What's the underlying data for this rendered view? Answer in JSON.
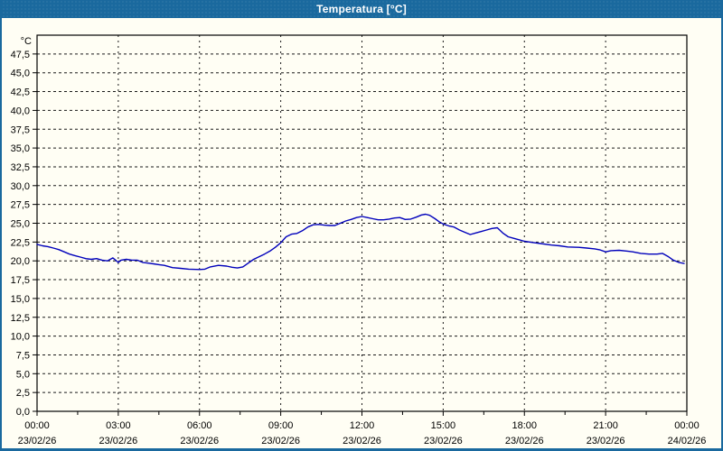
{
  "window": {
    "title": "Temperatura [°C]"
  },
  "colors": {
    "titlebar_bg": "#1a699e",
    "titlebar_text": "#ffffff",
    "window_border": "#1a699e",
    "plot_background": "#fffef4",
    "axis_frame": "#000000",
    "gridline": "#1a1a1a",
    "tick_text": "#000000",
    "series_line": "#0000bb"
  },
  "chart_data": {
    "type": "line",
    "title": "Temperatura [°C]",
    "legend": "none",
    "grid": {
      "horizontal": "dashed",
      "vertical": "dashed"
    },
    "y_axis": {
      "unit_label": "°C",
      "min": 0,
      "max": 50,
      "tick_step": 2.5,
      "tick_labels": [
        "0,0",
        "2,5",
        "5,0",
        "7,5",
        "10,0",
        "12,5",
        "15,0",
        "17,5",
        "20,0",
        "22,5",
        "25,0",
        "27,5",
        "30,0",
        "32,5",
        "35,0",
        "37,5",
        "40,0",
        "42,5",
        "45,0",
        "47,5"
      ]
    },
    "x_axis": {
      "min_hours": 0,
      "max_hours": 24,
      "major_step_hours": 3,
      "minor_step_hours": 1.5,
      "major_ticks": [
        {
          "time": "00:00",
          "date": "23/02/26"
        },
        {
          "time": "03:00",
          "date": "23/02/26"
        },
        {
          "time": "06:00",
          "date": "23/02/26"
        },
        {
          "time": "09:00",
          "date": "23/02/26"
        },
        {
          "time": "12:00",
          "date": "23/02/26"
        },
        {
          "time": "15:00",
          "date": "23/02/26"
        },
        {
          "time": "18:00",
          "date": "23/02/26"
        },
        {
          "time": "21:00",
          "date": "23/02/26"
        },
        {
          "time": "00:00",
          "date": "24/02/26"
        }
      ]
    },
    "series": [
      {
        "name": "Temperatura",
        "color": "#0000bb",
        "points": [
          [
            0.0,
            22.2
          ],
          [
            0.2,
            22.0
          ],
          [
            0.4,
            21.9
          ],
          [
            0.6,
            21.7
          ],
          [
            0.8,
            21.5
          ],
          [
            1.0,
            21.2
          ],
          [
            1.2,
            20.9
          ],
          [
            1.4,
            20.7
          ],
          [
            1.6,
            20.5
          ],
          [
            1.8,
            20.3
          ],
          [
            2.0,
            20.2
          ],
          [
            2.2,
            20.3
          ],
          [
            2.4,
            20.1
          ],
          [
            2.6,
            20.0
          ],
          [
            2.8,
            20.4
          ],
          [
            3.0,
            19.8
          ],
          [
            3.1,
            20.1
          ],
          [
            3.3,
            20.2
          ],
          [
            3.5,
            20.1
          ],
          [
            3.7,
            20.1
          ],
          [
            3.9,
            19.8
          ],
          [
            4.1,
            19.7
          ],
          [
            4.3,
            19.6
          ],
          [
            4.5,
            19.5
          ],
          [
            4.7,
            19.4
          ],
          [
            5.0,
            19.1
          ],
          [
            5.3,
            19.0
          ],
          [
            5.6,
            18.9
          ],
          [
            6.0,
            18.85
          ],
          [
            6.2,
            18.9
          ],
          [
            6.4,
            19.2
          ],
          [
            6.7,
            19.4
          ],
          [
            7.0,
            19.3
          ],
          [
            7.2,
            19.15
          ],
          [
            7.4,
            19.05
          ],
          [
            7.6,
            19.2
          ],
          [
            7.8,
            19.7
          ],
          [
            8.0,
            20.2
          ],
          [
            8.2,
            20.55
          ],
          [
            8.4,
            20.9
          ],
          [
            8.6,
            21.3
          ],
          [
            8.8,
            21.8
          ],
          [
            9.0,
            22.4
          ],
          [
            9.2,
            23.2
          ],
          [
            9.4,
            23.55
          ],
          [
            9.6,
            23.65
          ],
          [
            9.8,
            24.0
          ],
          [
            10.0,
            24.5
          ],
          [
            10.2,
            24.8
          ],
          [
            10.4,
            24.85
          ],
          [
            10.6,
            24.75
          ],
          [
            10.8,
            24.7
          ],
          [
            11.0,
            24.7
          ],
          [
            11.2,
            25.0
          ],
          [
            11.4,
            25.3
          ],
          [
            11.6,
            25.5
          ],
          [
            11.8,
            25.75
          ],
          [
            12.0,
            25.9
          ],
          [
            12.2,
            25.75
          ],
          [
            12.4,
            25.6
          ],
          [
            12.6,
            25.45
          ],
          [
            12.8,
            25.45
          ],
          [
            13.0,
            25.55
          ],
          [
            13.2,
            25.7
          ],
          [
            13.4,
            25.75
          ],
          [
            13.6,
            25.5
          ],
          [
            13.8,
            25.55
          ],
          [
            14.0,
            25.8
          ],
          [
            14.2,
            26.1
          ],
          [
            14.35,
            26.2
          ],
          [
            14.5,
            26.05
          ],
          [
            14.7,
            25.6
          ],
          [
            14.85,
            25.2
          ],
          [
            15.0,
            24.9
          ],
          [
            15.2,
            24.65
          ],
          [
            15.4,
            24.5
          ],
          [
            15.6,
            24.1
          ],
          [
            15.8,
            23.8
          ],
          [
            16.0,
            23.5
          ],
          [
            16.2,
            23.7
          ],
          [
            16.4,
            23.9
          ],
          [
            16.6,
            24.1
          ],
          [
            16.8,
            24.3
          ],
          [
            17.0,
            24.4
          ],
          [
            17.2,
            23.7
          ],
          [
            17.4,
            23.2
          ],
          [
            17.6,
            23.0
          ],
          [
            17.8,
            22.8
          ],
          [
            18.0,
            22.6
          ],
          [
            18.3,
            22.45
          ],
          [
            18.6,
            22.3
          ],
          [
            19.0,
            22.1
          ],
          [
            19.3,
            22.0
          ],
          [
            19.6,
            21.85
          ],
          [
            20.0,
            21.8
          ],
          [
            20.3,
            21.7
          ],
          [
            20.6,
            21.6
          ],
          [
            20.8,
            21.45
          ],
          [
            21.0,
            21.2
          ],
          [
            21.2,
            21.35
          ],
          [
            21.5,
            21.4
          ],
          [
            21.8,
            21.3
          ],
          [
            22.0,
            21.2
          ],
          [
            22.3,
            21.0
          ],
          [
            22.6,
            20.9
          ],
          [
            22.9,
            20.9
          ],
          [
            23.1,
            21.0
          ],
          [
            23.3,
            20.6
          ],
          [
            23.5,
            20.1
          ],
          [
            23.7,
            19.8
          ],
          [
            23.9,
            19.65
          ]
        ]
      }
    ]
  }
}
